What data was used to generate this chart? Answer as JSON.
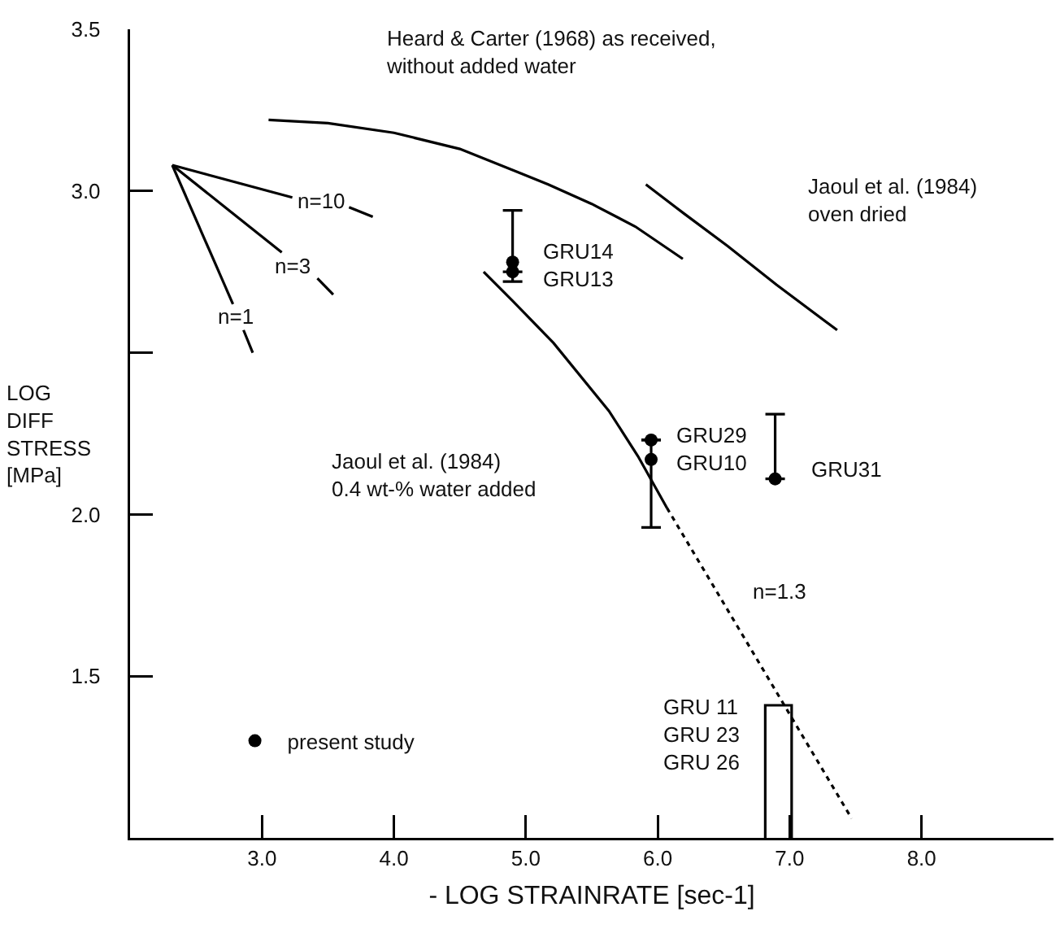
{
  "chart_data": {
    "type": "line",
    "xlabel": "- LOG STRAINRATE [sec-1]",
    "ylabel": "LOG\nDIFF\nSTRESS\n[MPa]",
    "xlim": [
      2,
      9
    ],
    "ylim": [
      1,
      3.5
    ],
    "xticks": [
      {
        "value": 3,
        "label": "3.0"
      },
      {
        "value": 4,
        "label": "4.0"
      },
      {
        "value": 5,
        "label": "5.0"
      },
      {
        "value": 6,
        "label": "6.0"
      },
      {
        "value": 7,
        "label": "7.0"
      },
      {
        "value": 8,
        "label": "8.0"
      }
    ],
    "yticks": [
      1.5,
      {
        "value": 2,
        "label": "2.0"
      },
      {
        "value": 2.5,
        "label": null
      },
      {
        "value": 3,
        "label": "3.0"
      },
      3.5
    ],
    "grid": false,
    "legend": "bottom left",
    "marker": "none",
    "line_style": "solid",
    "series": [
      {
        "color": "#000000",
        "x": [
          3.05,
          3.5,
          4.0,
          4.5,
          4.93,
          5.17,
          5.5,
          5.83,
          6.19
        ],
        "values": [
          3.22,
          3.21,
          3.18,
          3.13,
          3.06,
          3.02,
          2.96,
          2.89,
          2.79
        ]
      },
      {
        "color": "#000000",
        "x": [
          5.91,
          6.2,
          6.53,
          6.9,
          7.36
        ],
        "values": [
          3.02,
          2.93,
          2.83,
          2.71,
          2.57
        ]
      },
      {
        "color": "#000000",
        "x": [
          4.68,
          4.9,
          5.21,
          5.63,
          5.85,
          6.07
        ],
        "values": [
          2.75,
          2.66,
          2.53,
          2.32,
          2.18,
          2.02
        ]
      },
      {
        "color": "#000000",
        "line_style": "dotted",
        "x": [
          6.07,
          7.47
        ],
        "values": [
          2.02,
          1.06
        ]
      },
      {
        "color": "#000000",
        "x": [
          2.32,
          3.23,
          3.45,
          3.66,
          3.84
        ],
        "values": [
          3.08,
          2.98,
          null,
          2.95,
          2.92
        ]
      },
      {
        "color": "#000000",
        "x": [
          2.32,
          3.15,
          3.3,
          3.42,
          3.54
        ],
        "values": [
          3.08,
          2.81,
          null,
          2.73,
          2.68
        ]
      },
      {
        "color": "#000000",
        "x": [
          2.32,
          2.78,
          2.82,
          2.86,
          2.93
        ],
        "values": [
          3.08,
          2.65,
          null,
          2.57,
          2.5
        ]
      },
      {
        "type": "scatter",
        "name": "present study",
        "color": "#000000",
        "marker": "circle",
        "x": [
          4.9,
          4.9,
          5.95,
          5.95,
          6.89
        ],
        "values": [
          2.78,
          2.75,
          2.23,
          2.17,
          2.11
        ],
        "errors": [
          [
            2.72,
            2.94
          ],
          null,
          null,
          [
            1.96,
            2.23
          ],
          [
            2.11,
            2.31
          ]
        ]
      },
      {
        "type": "bar",
        "color": "#000000",
        "x": [
          6.915
        ],
        "values": [
          1.41
        ]
      }
    ],
    "annotations": [
      "Heard & Carter (1968) as received,\nwithout added water",
      "Jaoul et al. (1984)\noven dried",
      "Jaoul et al. (1984)\n0.4 wt-% water added",
      "n=10",
      "n=3",
      "n=1",
      "n=1.3",
      "GRU14\nGRU13",
      "GRU29\nGRU10",
      "GRU31",
      "GRU 11\nGRU 23\nGRU 26"
    ]
  }
}
